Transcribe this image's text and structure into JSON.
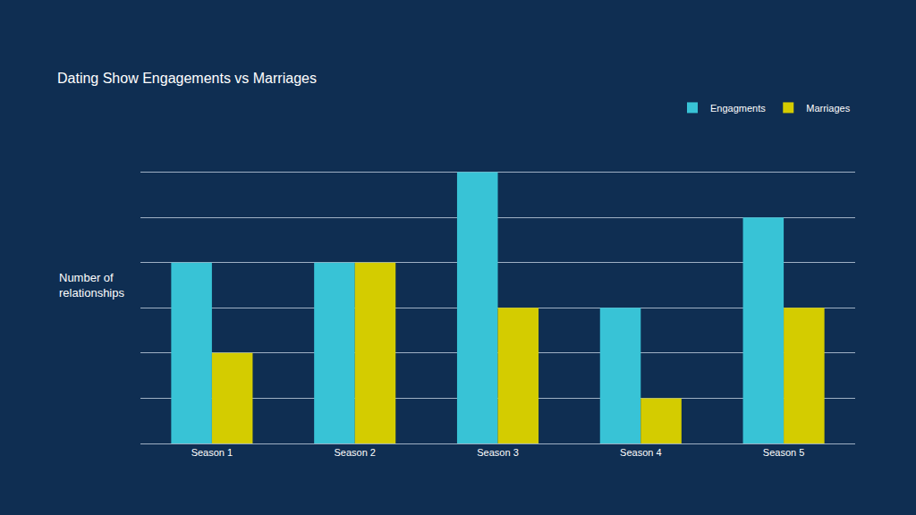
{
  "chart_data": {
    "type": "bar",
    "title": "Dating Show Engagements vs Marriages",
    "ylabel": "Number of relationships",
    "categories": [
      "Season 1",
      "Season 2",
      "Season 3",
      "Season 4",
      "Season 5"
    ],
    "series": [
      {
        "name": "Engagments",
        "color": "#38c3d6",
        "values": [
          4,
          4,
          6,
          3,
          5
        ]
      },
      {
        "name": "Marriages",
        "color": "#d4cc00",
        "values": [
          2,
          4,
          3,
          1,
          3
        ]
      }
    ],
    "ylim": [
      0,
      7
    ],
    "yticks": [
      0,
      1,
      2,
      3,
      4,
      5,
      6,
      7
    ],
    "grid": true,
    "legend": "top right",
    "tick_labels": "x"
  }
}
